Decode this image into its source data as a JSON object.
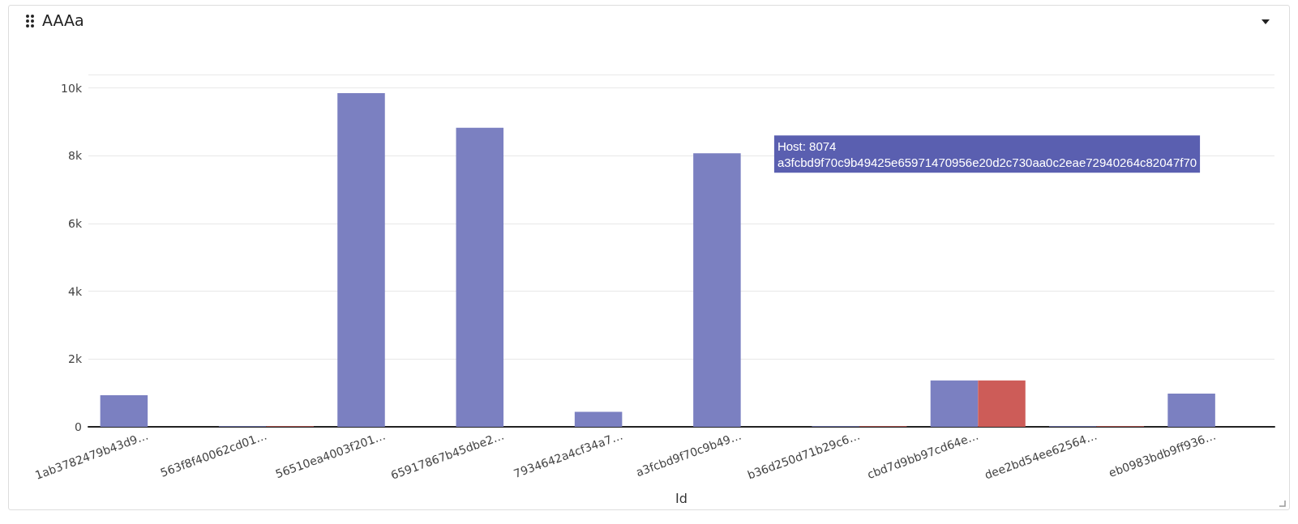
{
  "chart_data": {
    "type": "bar",
    "title": "AAAa",
    "xlabel": "Id",
    "categories": [
      "1ab3782479b43d9…",
      "563f8f40062cd01…",
      "56510ea4003f201…",
      "65917867b45dbe2…",
      "7934642a4cf34a7…",
      "a3fcbd9f70c9b49…",
      "b36d250d71b29c6…",
      "cbd7d9bb97cd64e…",
      "dee2bd54ee62564…",
      "eb0983bdb9ff936…"
    ],
    "series": [
      {
        "color": "#7b80c1",
        "values": [
          930,
          20,
          9850,
          8830,
          440,
          8074,
          20,
          1370,
          20,
          980
        ]
      },
      {
        "color": "#cd5c58",
        "values": [
          null,
          20,
          null,
          null,
          null,
          null,
          20,
          1370,
          20,
          null
        ]
      }
    ],
    "ylim": [
      0,
      10400
    ],
    "yticks": [
      0,
      {
        "value": 2000,
        "label": "2k"
      },
      {
        "value": 4000,
        "label": "4k"
      },
      {
        "value": 6000,
        "label": "6k"
      },
      {
        "value": 8000,
        "label": "8k"
      },
      {
        "value": 10000,
        "label": "10k"
      }
    ],
    "grid": "y",
    "annotations": [
      {
        "text": "Host: 8074\na3fcbd9f70c9b49425e65971470956e20d2c730aa0c2eae72940264c82047f70",
        "x": "a3fcbd9f70c9b49…",
        "y": 8074
      }
    ]
  }
}
